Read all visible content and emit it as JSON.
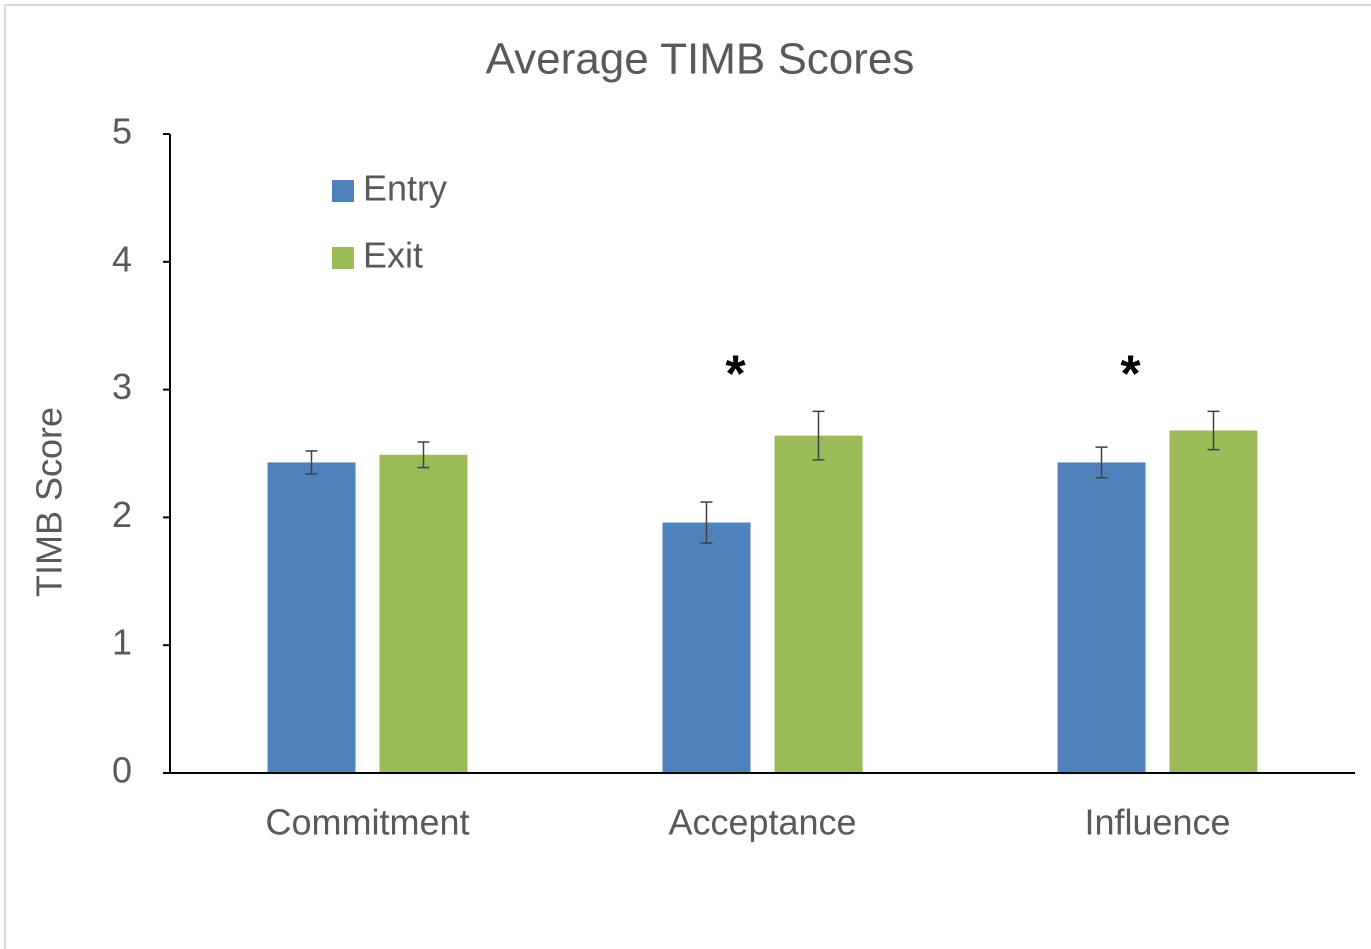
{
  "chart_data": {
    "type": "bar",
    "title": "Average TIMB Scores",
    "y_label": "TIMB Score",
    "categories": [
      "Commitment",
      "Acceptance",
      "Influence"
    ],
    "series": [
      {
        "name": "Entry",
        "color": "#4f81bd",
        "values": [
          2.43,
          1.96,
          2.43
        ],
        "errors": [
          0.09,
          0.16,
          0.12
        ]
      },
      {
        "name": "Exit",
        "color": "#9bbb59",
        "values": [
          2.49,
          2.64,
          2.68
        ],
        "errors": [
          0.1,
          0.19,
          0.15
        ]
      }
    ],
    "annotations": [
      null,
      "*",
      "*"
    ],
    "ylim": [
      0,
      5
    ],
    "yticks": [
      0,
      1,
      2,
      3,
      4,
      5
    ],
    "grid": false,
    "legend": "upper left"
  }
}
